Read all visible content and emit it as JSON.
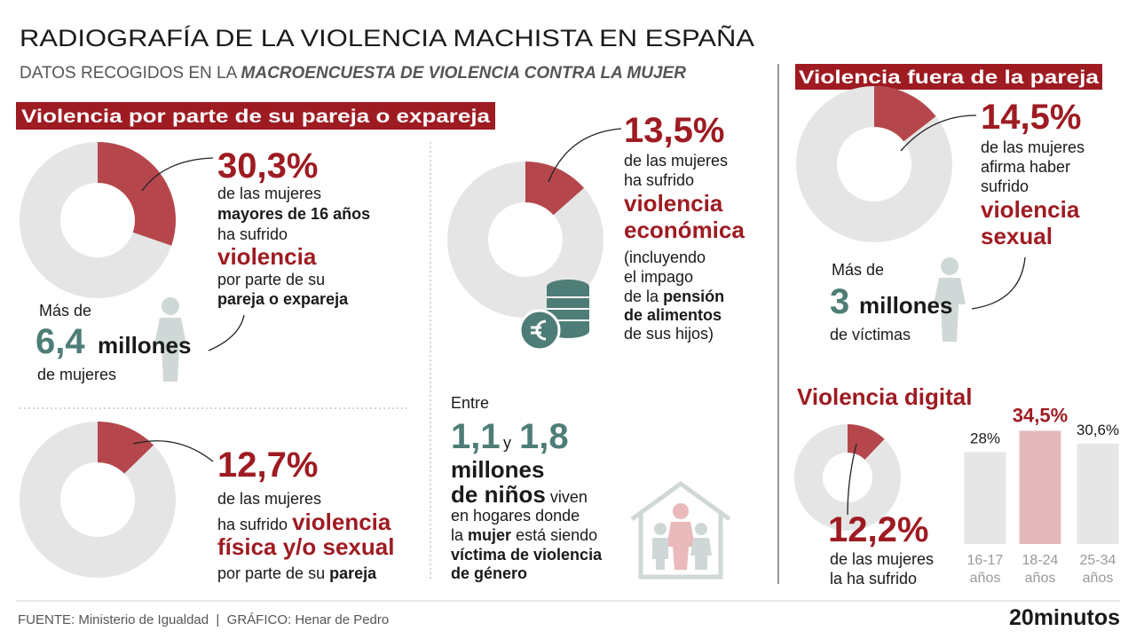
{
  "header": {
    "title": "RADIOGRAFÍA DE LA VIOLENCIA MACHISTA EN ESPAÑA",
    "subtitle": "DATOS RECOGIDOS EN LA",
    "subtitle_emphasis": "MACROENCUESTA DE VIOLENCIA CONTRA LA MUJER"
  },
  "partner_section": {
    "heading": "Violencia por parte de su pareja o expareja",
    "stats": [
      {
        "value": 30.3,
        "value_label": "30,3%",
        "lines": [
          "de las mujeres",
          "mayores de 16 años",
          "ha sufrido",
          "violencia",
          "por parte de su",
          "pareja o expareja"
        ],
        "victims": [
          "Más de",
          "6,4",
          "millones",
          "de mujeres"
        ]
      },
      {
        "value": 12.7,
        "value_label": "12,7%",
        "lines": [
          "de las mujeres",
          "ha sufrido",
          "violencia",
          "física y/o sexual",
          "por parte de su",
          "pareja"
        ]
      },
      {
        "value": 13.5,
        "value_label": "13,5%",
        "lines": [
          "de las mujeres",
          "ha sufrido",
          "violencia",
          "económica",
          "(incluyendo",
          "el impago",
          "de la",
          "pensión",
          "de alimentos",
          "de sus hijos)"
        ]
      }
    ],
    "children": [
      "Entre",
      "1,1",
      "y",
      "1,8",
      "millones",
      "de niños",
      "viven",
      "en hogares donde",
      "la",
      "mujer",
      "está siendo",
      "víctima de violencia",
      "de género"
    ]
  },
  "outside_section": {
    "heading": "Violencia fuera de la pareja",
    "stat": {
      "value": 14.5,
      "value_label": "14,5%",
      "lines": [
        "de las mujeres",
        "afirma haber",
        "sufrido",
        "violencia",
        "sexual"
      ],
      "victims": [
        "Más de",
        "3",
        "millones",
        "de víctimas"
      ]
    }
  },
  "digital_section": {
    "heading": "Violencia digital",
    "stat": {
      "value": 12.2,
      "value_label": "12,2%",
      "lines": [
        "de las mujeres",
        "la ha sufrido"
      ]
    },
    "chart_data": {
      "type": "bar",
      "categories": [
        [
          "16-17",
          "años"
        ],
        [
          "18-24",
          "años"
        ],
        [
          "25-34",
          "años"
        ]
      ],
      "values": [
        28,
        34.5,
        30.6
      ],
      "value_labels": [
        "28%",
        "34,5%",
        "30,6%"
      ],
      "colors": [
        "#e6e6e6",
        "#e5b9bc",
        "#e6e6e6"
      ],
      "highlight": 1
    }
  },
  "footer": {
    "source": "FUENTE: Ministerio de Igualdad  |  GRÁFICO: Henar de Pedro",
    "logo": "20minutos"
  }
}
